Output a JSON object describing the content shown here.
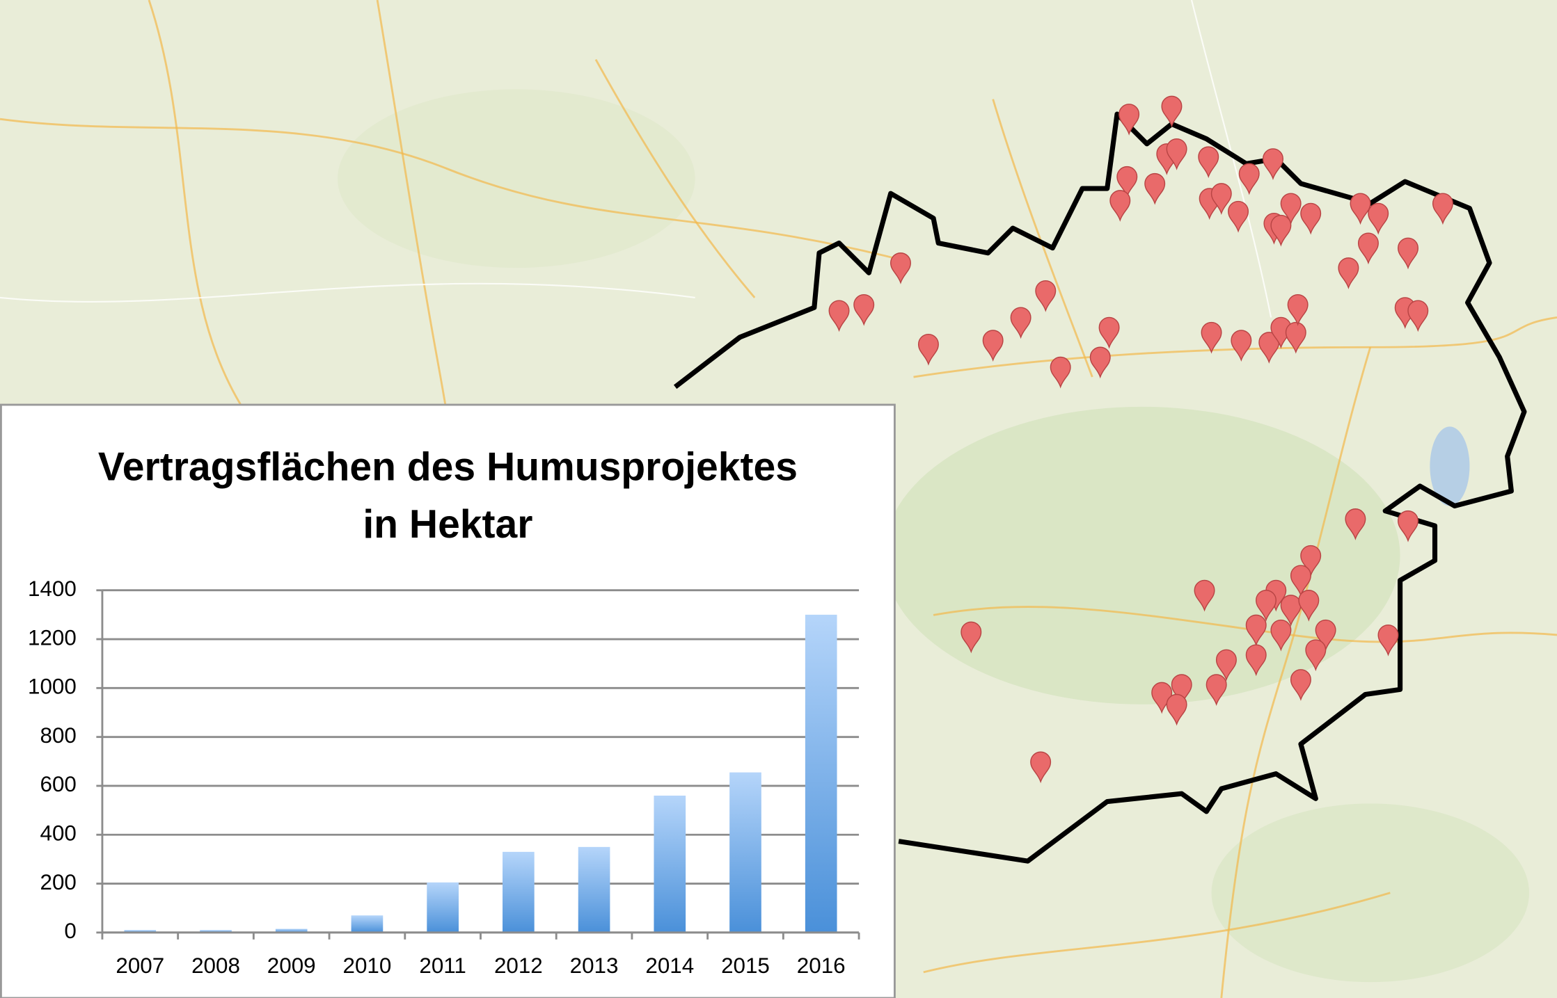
{
  "chart_data": {
    "type": "bar",
    "title": "Vertragsflächen des Humusprojektes in Hektar",
    "categories": [
      "2007",
      "2008",
      "2009",
      "2010",
      "2011",
      "2012",
      "2013",
      "2014",
      "2015",
      "2016"
    ],
    "values": [
      10,
      10,
      15,
      70,
      205,
      330,
      350,
      560,
      655,
      1300
    ],
    "color": "#4a90d9",
    "ylim": [
      0,
      1400
    ],
    "yticks": [
      0,
      200,
      400,
      600,
      800,
      1000,
      1200,
      1400
    ],
    "grid": true
  }
}
